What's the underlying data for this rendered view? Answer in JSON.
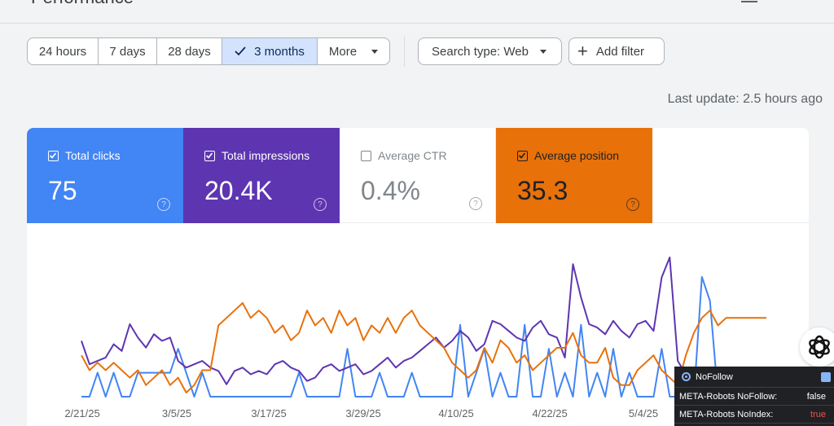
{
  "page": {
    "title": "Performance"
  },
  "date_range": {
    "options": [
      {
        "label": "24 hours",
        "selected": false
      },
      {
        "label": "7 days",
        "selected": false
      },
      {
        "label": "28 days",
        "selected": false
      },
      {
        "label": "3 months",
        "selected": true
      },
      {
        "label": "More",
        "selected": false
      }
    ]
  },
  "filters": {
    "search_type_label": "Search type: Web",
    "add_filter_label": "Add filter"
  },
  "last_update": "Last update: 2.5 hours ago",
  "metrics": [
    {
      "key": "clicks",
      "label": "Total clicks",
      "value": "75",
      "checked": true,
      "color": "#4285f4"
    },
    {
      "key": "impressions",
      "label": "Total impressions",
      "value": "20.4K",
      "checked": true,
      "color": "#5e35b1"
    },
    {
      "key": "ctr",
      "label": "Average CTR",
      "value": "0.4%",
      "checked": false,
      "color": "#ffffff"
    },
    {
      "key": "position",
      "label": "Average position",
      "value": "35.3",
      "checked": true,
      "color": "#e8710a"
    }
  ],
  "chart_data": {
    "type": "line",
    "x_tick_labels": [
      "2/21/25",
      "3/5/25",
      "3/17/25",
      "3/29/25",
      "4/10/25",
      "4/22/25",
      "5/4/25"
    ],
    "series": [
      {
        "name": "Total clicks",
        "color": "#4285f4",
        "values": [
          0,
          0,
          1,
          0,
          1,
          0,
          0,
          1,
          1,
          1,
          1,
          1,
          2,
          1,
          0,
          1,
          0,
          0,
          0,
          0,
          0,
          0,
          0,
          0,
          0,
          0,
          0,
          1,
          0,
          0,
          0,
          0,
          0,
          2,
          0,
          0,
          0,
          1,
          0,
          0,
          0,
          1,
          0,
          0,
          0,
          0,
          0,
          3,
          0,
          1,
          2,
          0,
          1,
          0,
          0,
          3,
          0,
          0,
          2,
          0,
          1,
          0,
          3,
          0,
          1,
          0,
          2,
          0,
          1,
          0,
          0,
          0,
          2,
          0,
          0,
          0,
          0,
          5,
          4,
          0,
          0,
          0,
          0,
          0,
          1,
          0
        ]
      },
      {
        "name": "Total impressions",
        "color": "#5e35b1",
        "values": [
          150,
          80,
          90,
          100,
          140,
          120,
          200,
          160,
          130,
          170,
          150,
          160,
          90,
          70,
          80,
          90,
          70,
          60,
          20,
          60,
          70,
          50,
          60,
          50,
          80,
          90,
          70,
          60,
          30,
          40,
          70,
          80,
          60,
          70,
          80,
          50,
          60,
          80,
          100,
          70,
          90,
          100,
          120,
          140,
          160,
          130,
          150,
          180,
          160,
          120,
          140,
          210,
          200,
          180,
          160,
          150,
          190,
          210,
          170,
          160,
          100,
          380,
          280,
          200,
          190,
          170,
          210,
          180,
          160,
          200,
          210,
          180,
          340,
          400,
          90,
          50,
          20,
          40,
          60,
          40,
          30,
          20,
          10,
          20,
          30,
          10
        ]
      },
      {
        "name": "Average position",
        "color": "#e8710a",
        "values": [
          35,
          33,
          34,
          33,
          34,
          33,
          32,
          33,
          31,
          32,
          33,
          31,
          32,
          30,
          31,
          33,
          33,
          39,
          40,
          41,
          42,
          40,
          41,
          40,
          38,
          39,
          37,
          38,
          41,
          39,
          40,
          38,
          41,
          39,
          40,
          37,
          39,
          38,
          40,
          38,
          40,
          41,
          39,
          38,
          37,
          36,
          34,
          33,
          32,
          33,
          36,
          34,
          37,
          36,
          34,
          35,
          33,
          34,
          35,
          36,
          36,
          38,
          35,
          34,
          34,
          36,
          32,
          31,
          31,
          33,
          34,
          35,
          33,
          32,
          31,
          35,
          38,
          40,
          41,
          39,
          40,
          40,
          40,
          40,
          40,
          40
        ]
      }
    ]
  },
  "extension": {
    "title": "NoFollow",
    "rows": [
      {
        "label": "META-Robots NoFollow:",
        "value": "false"
      },
      {
        "label": "META-Robots NoIndex:",
        "value": "true"
      }
    ]
  }
}
